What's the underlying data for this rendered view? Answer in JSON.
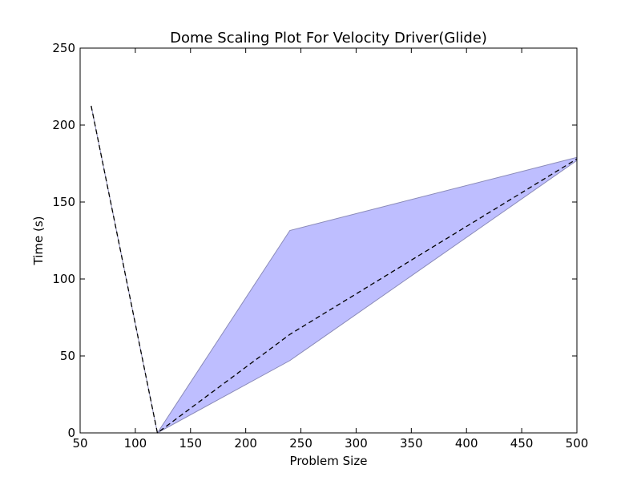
{
  "chart_data": {
    "type": "line",
    "title": "Dome  Scaling Plot For Velocity Driver(Glide)",
    "xlabel": "Problem Size",
    "ylabel": "Time (s)",
    "xlim": [
      50,
      500
    ],
    "ylim": [
      0,
      250
    ],
    "xticks": [
      50,
      100,
      150,
      200,
      250,
      300,
      350,
      400,
      450,
      500
    ],
    "yticks": [
      0,
      50,
      100,
      150,
      200,
      250
    ],
    "grid": false,
    "legend": "none",
    "series": [
      {
        "style": "dashed",
        "color": "#000000",
        "x": [
          60,
          120,
          240,
          500
        ],
        "y": [
          212.5,
          0,
          64,
          178
        ]
      }
    ],
    "band": {
      "color": "#b3b3ff",
      "x": [
        60,
        120,
        240,
        500
      ],
      "upper": [
        212.5,
        0,
        131.5,
        179
      ],
      "lower": [
        212.5,
        0,
        47,
        177
      ]
    }
  }
}
